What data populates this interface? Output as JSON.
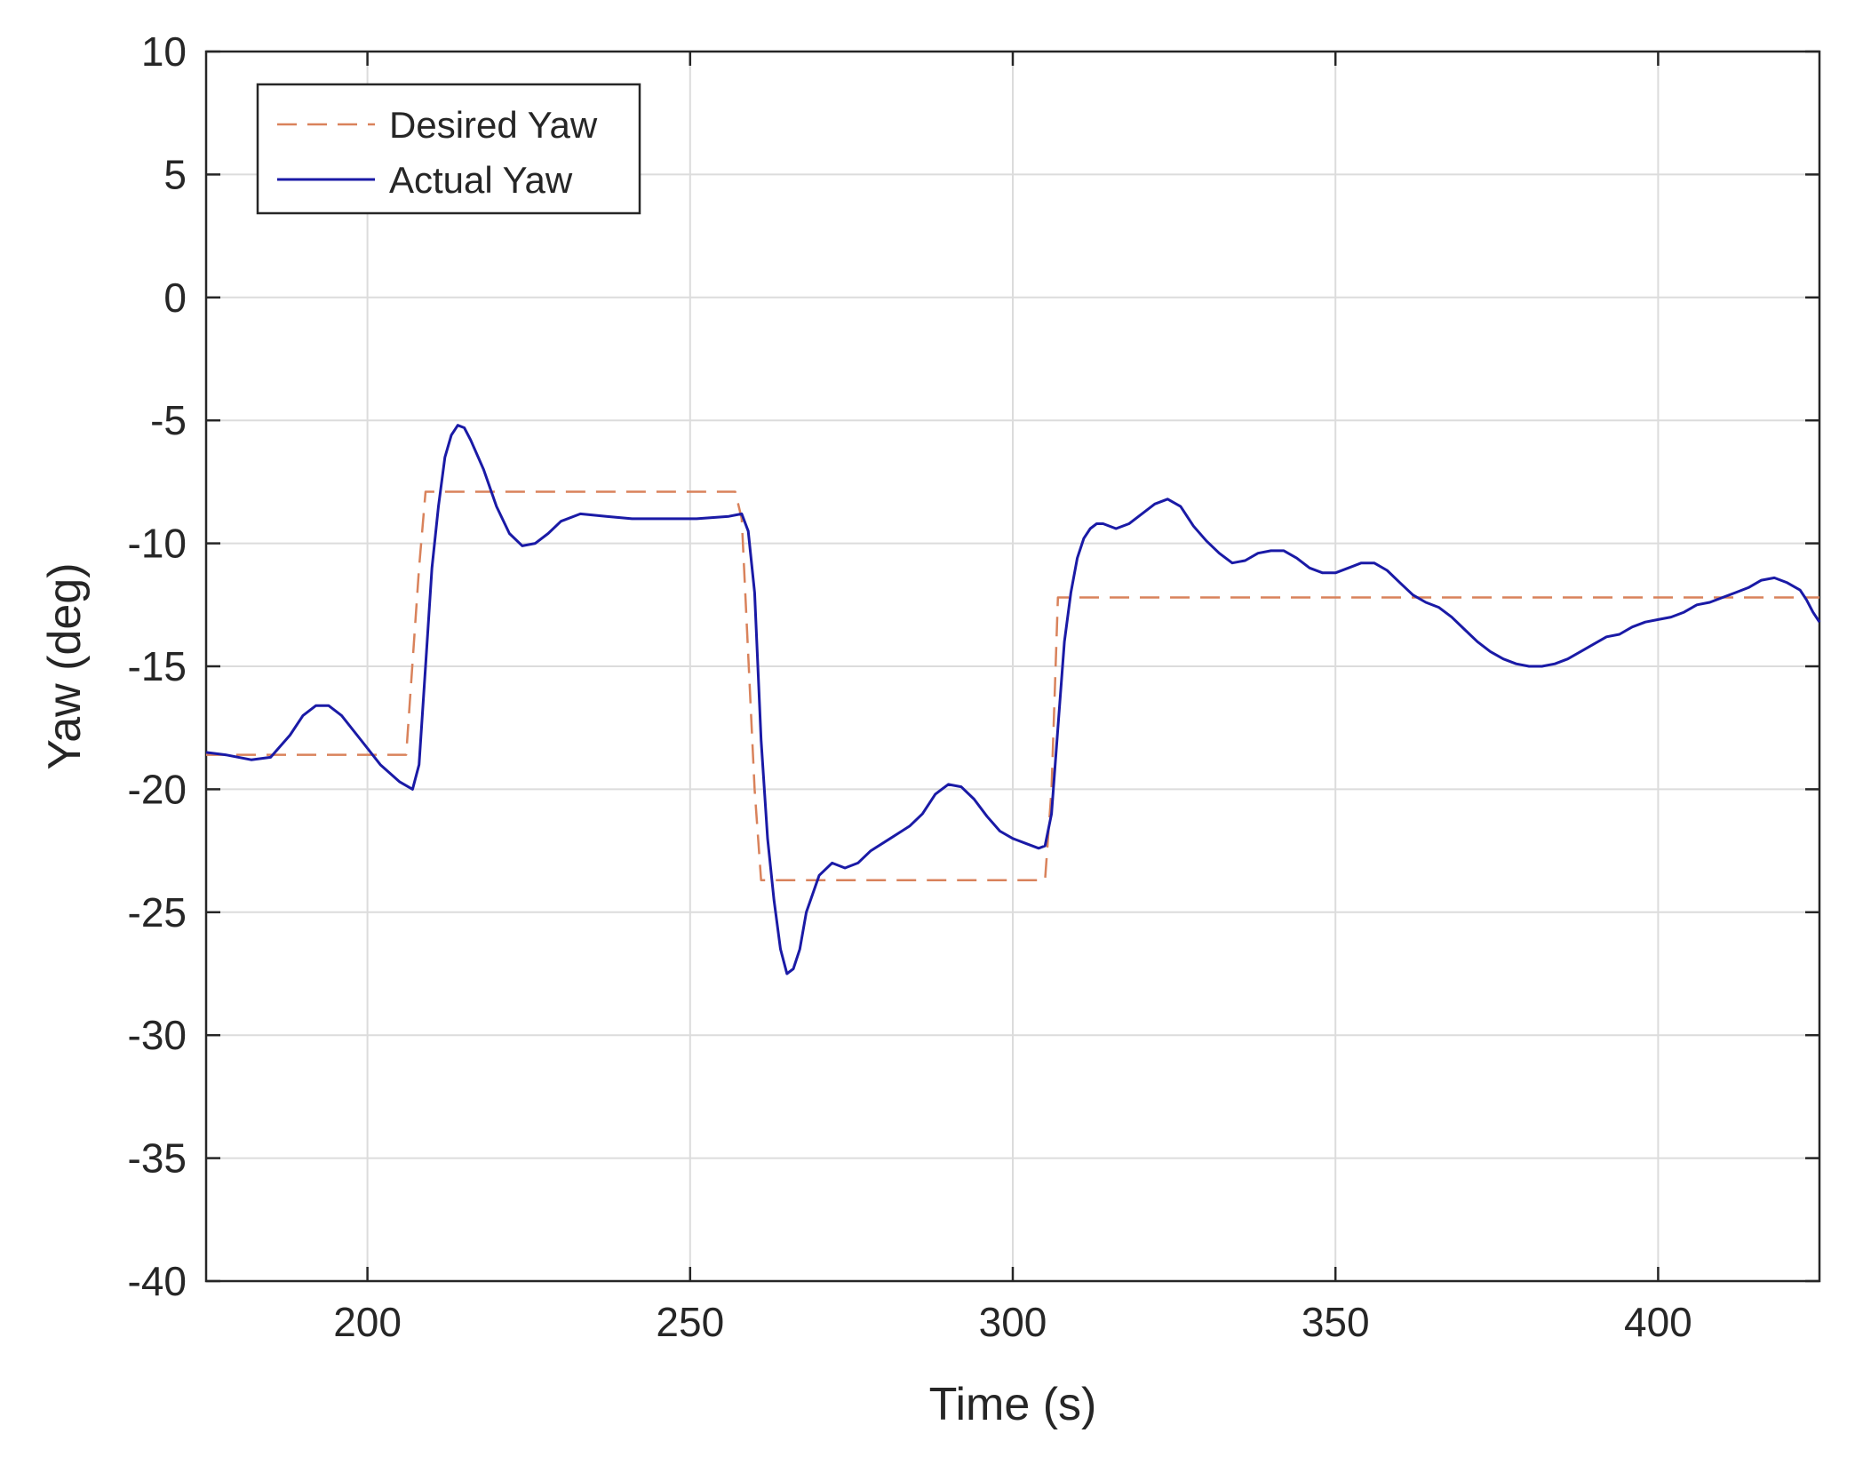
{
  "chart_data": {
    "type": "line",
    "title": "",
    "xlabel": "Time (s)",
    "ylabel": "Yaw (deg)",
    "xlim": [
      175,
      425
    ],
    "ylim": [
      -40,
      10
    ],
    "xticks": [
      200,
      250,
      300,
      350,
      400
    ],
    "yticks": [
      10,
      5,
      0,
      -5,
      -10,
      -15,
      -20,
      -25,
      -30,
      -35,
      -40
    ],
    "grid": true,
    "legend_position": "top-left",
    "series": [
      {
        "name": "Desired Yaw",
        "color": "#d9825b",
        "style": "dashed",
        "points": [
          [
            175,
            -18.6
          ],
          [
            206,
            -18.6
          ],
          [
            208,
            -11.0
          ],
          [
            209,
            -7.9
          ],
          [
            257,
            -7.9
          ],
          [
            258,
            -9.0
          ],
          [
            260,
            -20.0
          ],
          [
            261,
            -23.7
          ],
          [
            305,
            -23.7
          ],
          [
            306,
            -20.0
          ],
          [
            307,
            -12.2
          ],
          [
            425,
            -12.2
          ]
        ]
      },
      {
        "name": "Actual Yaw",
        "color": "#1a1aa6",
        "style": "solid",
        "points": [
          [
            175,
            -18.5
          ],
          [
            178,
            -18.6
          ],
          [
            182,
            -18.8
          ],
          [
            185,
            -18.7
          ],
          [
            188,
            -17.8
          ],
          [
            190,
            -17.0
          ],
          [
            192,
            -16.6
          ],
          [
            194,
            -16.6
          ],
          [
            196,
            -17.0
          ],
          [
            199,
            -18.0
          ],
          [
            202,
            -19.0
          ],
          [
            205,
            -19.7
          ],
          [
            207,
            -20.0
          ],
          [
            208,
            -19.0
          ],
          [
            209,
            -15.0
          ],
          [
            210,
            -11.0
          ],
          [
            211,
            -8.5
          ],
          [
            212,
            -6.5
          ],
          [
            213,
            -5.6
          ],
          [
            214,
            -5.2
          ],
          [
            215,
            -5.3
          ],
          [
            216,
            -5.8
          ],
          [
            218,
            -7.0
          ],
          [
            220,
            -8.5
          ],
          [
            222,
            -9.6
          ],
          [
            224,
            -10.1
          ],
          [
            226,
            -10.0
          ],
          [
            228,
            -9.6
          ],
          [
            230,
            -9.1
          ],
          [
            233,
            -8.8
          ],
          [
            237,
            -8.9
          ],
          [
            241,
            -9.0
          ],
          [
            246,
            -9.0
          ],
          [
            251,
            -9.0
          ],
          [
            256,
            -8.9
          ],
          [
            258,
            -8.8
          ],
          [
            259,
            -9.5
          ],
          [
            260,
            -12.0
          ],
          [
            261,
            -18.0
          ],
          [
            262,
            -22.0
          ],
          [
            263,
            -24.5
          ],
          [
            264,
            -26.5
          ],
          [
            265,
            -27.5
          ],
          [
            266,
            -27.3
          ],
          [
            267,
            -26.5
          ],
          [
            268,
            -25.0
          ],
          [
            270,
            -23.5
          ],
          [
            272,
            -23.0
          ],
          [
            274,
            -23.2
          ],
          [
            276,
            -23.0
          ],
          [
            278,
            -22.5
          ],
          [
            281,
            -22.0
          ],
          [
            284,
            -21.5
          ],
          [
            286,
            -21.0
          ],
          [
            288,
            -20.2
          ],
          [
            290,
            -19.8
          ],
          [
            292,
            -19.9
          ],
          [
            294,
            -20.4
          ],
          [
            296,
            -21.1
          ],
          [
            298,
            -21.7
          ],
          [
            300,
            -22.0
          ],
          [
            302,
            -22.2
          ],
          [
            304,
            -22.4
          ],
          [
            305,
            -22.3
          ],
          [
            306,
            -21.0
          ],
          [
            307,
            -17.5
          ],
          [
            308,
            -14.0
          ],
          [
            309,
            -12.0
          ],
          [
            310,
            -10.6
          ],
          [
            311,
            -9.8
          ],
          [
            312,
            -9.4
          ],
          [
            313,
            -9.2
          ],
          [
            314,
            -9.2
          ],
          [
            316,
            -9.4
          ],
          [
            318,
            -9.2
          ],
          [
            320,
            -8.8
          ],
          [
            322,
            -8.4
          ],
          [
            324,
            -8.2
          ],
          [
            326,
            -8.5
          ],
          [
            328,
            -9.3
          ],
          [
            330,
            -9.9
          ],
          [
            332,
            -10.4
          ],
          [
            334,
            -10.8
          ],
          [
            336,
            -10.7
          ],
          [
            338,
            -10.4
          ],
          [
            340,
            -10.3
          ],
          [
            342,
            -10.3
          ],
          [
            344,
            -10.6
          ],
          [
            346,
            -11.0
          ],
          [
            348,
            -11.2
          ],
          [
            350,
            -11.2
          ],
          [
            352,
            -11.0
          ],
          [
            354,
            -10.8
          ],
          [
            356,
            -10.8
          ],
          [
            358,
            -11.1
          ],
          [
            360,
            -11.6
          ],
          [
            362,
            -12.1
          ],
          [
            364,
            -12.4
          ],
          [
            366,
            -12.6
          ],
          [
            368,
            -13.0
          ],
          [
            370,
            -13.5
          ],
          [
            372,
            -14.0
          ],
          [
            374,
            -14.4
          ],
          [
            376,
            -14.7
          ],
          [
            378,
            -14.9
          ],
          [
            380,
            -15.0
          ],
          [
            382,
            -15.0
          ],
          [
            384,
            -14.9
          ],
          [
            386,
            -14.7
          ],
          [
            388,
            -14.4
          ],
          [
            390,
            -14.1
          ],
          [
            392,
            -13.8
          ],
          [
            394,
            -13.7
          ],
          [
            396,
            -13.4
          ],
          [
            398,
            -13.2
          ],
          [
            400,
            -13.1
          ],
          [
            402,
            -13.0
          ],
          [
            404,
            -12.8
          ],
          [
            406,
            -12.5
          ],
          [
            408,
            -12.4
          ],
          [
            410,
            -12.2
          ],
          [
            412,
            -12.0
          ],
          [
            414,
            -11.8
          ],
          [
            416,
            -11.5
          ],
          [
            418,
            -11.4
          ],
          [
            420,
            -11.6
          ],
          [
            422,
            -11.9
          ],
          [
            423,
            -12.3
          ],
          [
            424,
            -12.8
          ],
          [
            425,
            -13.2
          ]
        ]
      }
    ]
  }
}
